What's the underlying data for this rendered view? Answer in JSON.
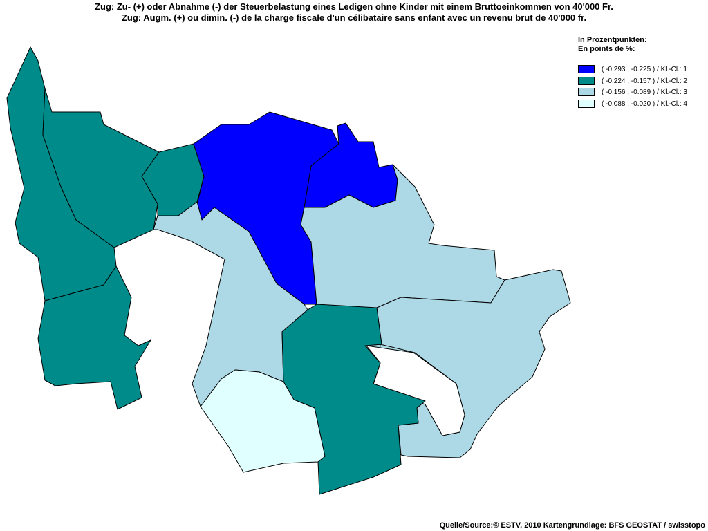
{
  "title": {
    "de": "Zug: Zu- (+) oder Abnahme (-) der Steuerbelastung eines Ledigen ohne Kinder mit einem Bruttoeinkommen von 40'000 Fr.",
    "fr": "Zug: Augm. (+) ou dimin. (-) de la charge fiscale d'un célibataire sans enfant avec un revenu brut de 40'000 fr."
  },
  "legend": {
    "heading_de": "In Prozentpunkten:",
    "heading_fr": "En points de %:",
    "classes": [
      {
        "label": "( -0.293 , -0.225 ) / Kl.-Cl.: 1",
        "color": "#0000ff"
      },
      {
        "label": "( -0.224 , -0.157 ) / Kl.-Cl.: 2",
        "color": "#008b8b"
      },
      {
        "label": "( -0.156 , -0.089 ) / Kl.-Cl.: 3",
        "color": "#add8e6"
      },
      {
        "label": "( -0.088 , -0.020 ) / Kl.-Cl.: 4",
        "color": "#e0ffff"
      }
    ]
  },
  "regions": [
    {
      "id": "west-upper",
      "class": 2
    },
    {
      "id": "west-middle",
      "class": 2
    },
    {
      "id": "west-lower",
      "class": 2
    },
    {
      "id": "north-west-small",
      "class": 2
    },
    {
      "id": "north-central",
      "class": 1
    },
    {
      "id": "north-east-small",
      "class": 1
    },
    {
      "id": "central",
      "class": 3
    },
    {
      "id": "north-east-large",
      "class": 3
    },
    {
      "id": "east",
      "class": 3
    },
    {
      "id": "south-central",
      "class": 2
    },
    {
      "id": "south",
      "class": 4
    },
    {
      "id": "far-west-strip",
      "class": 2
    }
  ],
  "source": "Quelle/Source:© ESTV, 2010 Kartengrundlage: BFS GEOSTAT / swisstopo"
}
